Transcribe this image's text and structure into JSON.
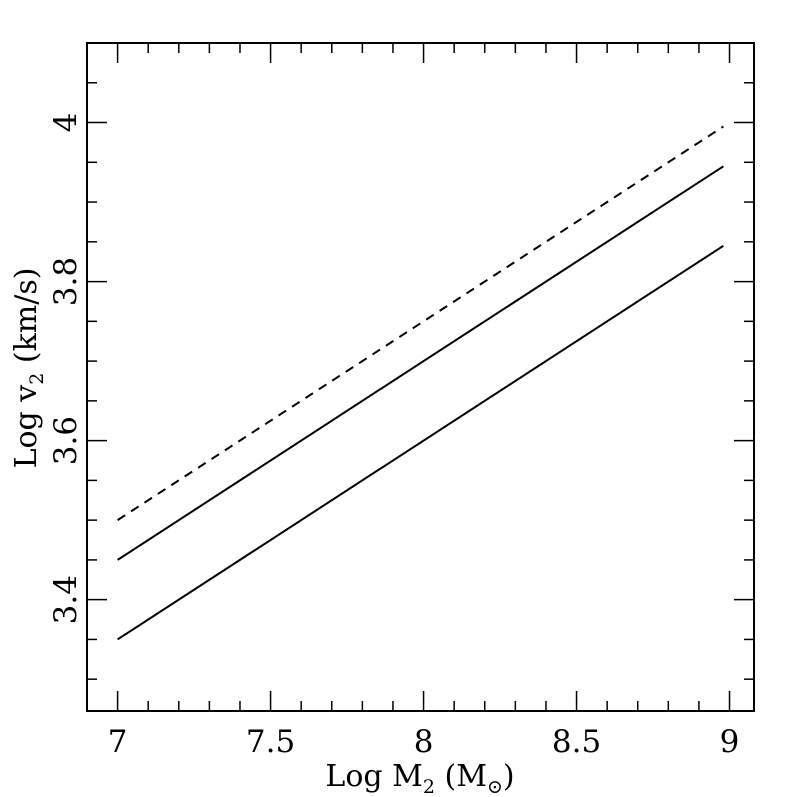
{
  "chart_data": {
    "type": "line",
    "title": "",
    "xlabel": {
      "prefix": "Log M",
      "sub": "2",
      "suffix_open": " (M",
      "suffix_sub": "⊙",
      "suffix_close": ")"
    },
    "ylabel": {
      "prefix": "Log v",
      "sub": "2",
      "suffix": " (km/s)"
    },
    "xlim": [
      6.9,
      9.08
    ],
    "ylim": [
      3.26,
      4.1
    ],
    "x_ticks": [
      7,
      7.5,
      8,
      8.5,
      9
    ],
    "x_tick_labels": [
      "7",
      "7.5",
      "8",
      "8.5",
      "9"
    ],
    "y_ticks": [
      3.4,
      3.6,
      3.8,
      4.0
    ],
    "y_tick_labels": [
      "3.4",
      "3.6",
      "3.8",
      "4"
    ],
    "x_minor_step": 0.1,
    "y_minor_step": 0.05,
    "grid": false,
    "legend": "none",
    "series": [
      {
        "style": "dashed",
        "x": [
          7,
          8.98
        ],
        "y": [
          3.5,
          3.995
        ]
      },
      {
        "style": "solid",
        "x": [
          7,
          8.98
        ],
        "y": [
          3.45,
          3.945
        ]
      },
      {
        "style": "solid",
        "x": [
          7,
          8.98
        ],
        "y": [
          3.35,
          3.845
        ]
      }
    ]
  }
}
